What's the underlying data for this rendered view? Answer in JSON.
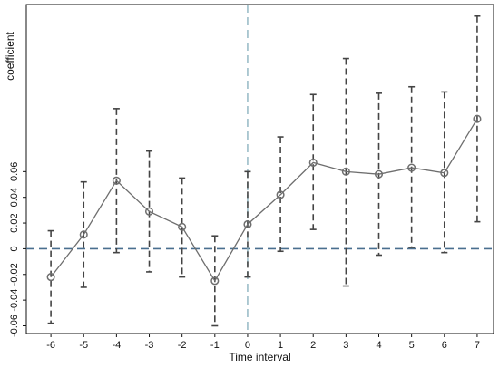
{
  "chart_data": {
    "type": "scatter",
    "title": "",
    "xlabel": "Time interval",
    "ylabel": "coefficient",
    "x": [
      -6,
      -5,
      -4,
      -3,
      -2,
      -1,
      0,
      1,
      2,
      3,
      4,
      5,
      6,
      7
    ],
    "series": [
      {
        "values": [
          -0.022,
          0.011,
          0.053,
          0.029,
          0.017,
          -0.025,
          0.019,
          0.042,
          0.067,
          0.06,
          0.058,
          0.063,
          0.059,
          0.101
        ],
        "ci_low": [
          -0.058,
          -0.03,
          -0.003,
          -0.018,
          -0.022,
          -0.06,
          -0.022,
          -0.002,
          0.015,
          -0.029,
          -0.005,
          0.001,
          -0.003,
          0.021
        ],
        "ci_high": [
          0.014,
          0.052,
          0.109,
          0.076,
          0.055,
          0.01,
          0.06,
          0.087,
          0.12,
          0.148,
          0.121,
          0.126,
          0.122,
          0.181
        ]
      }
    ],
    "xticks": [
      "-6",
      "-5",
      "-4",
      "-3",
      "-2",
      "-1",
      "0",
      "1",
      "2",
      "3",
      "4",
      "5",
      "6",
      "7"
    ],
    "yticks": [
      "-0.06",
      "-0.04",
      "-0.02",
      "0",
      "0.02",
      "0.04",
      "0.06"
    ],
    "ytick_values": [
      -0.06,
      -0.04,
      -0.02,
      0,
      0.02,
      0.04,
      0.06
    ],
    "xlim": [
      -6.75,
      7.5
    ],
    "ylim": [
      -0.066,
      0.19
    ],
    "reference_lines": {
      "horizontal_y": 0,
      "vertical_x": 0
    },
    "grid": false,
    "legend": "none",
    "colors": {
      "series": "#6e6e6e",
      "ci": "#444444",
      "horizontal_ref": "#4a6f8f",
      "vertical_ref": "#8db4c0",
      "axis": "#111111"
    }
  }
}
